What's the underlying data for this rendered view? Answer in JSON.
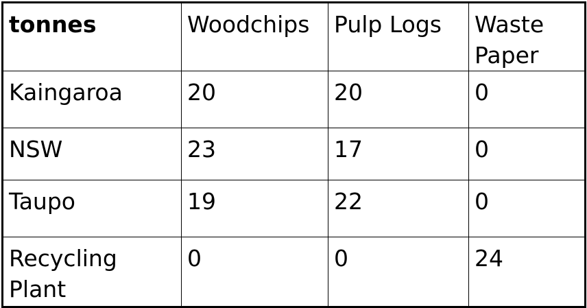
{
  "table": {
    "corner_label": "tonnes",
    "columns": [
      "Woodchips",
      "Pulp Logs",
      "Waste Paper"
    ],
    "rows": [
      {
        "name": "Kaingaroa",
        "values": [
          "20",
          "20",
          "0"
        ]
      },
      {
        "name": "NSW",
        "values": [
          "23",
          "17",
          "0"
        ]
      },
      {
        "name": "Taupo",
        "values": [
          "19",
          "22",
          "0"
        ]
      },
      {
        "name": "Recycling Plant",
        "values": [
          "0",
          "0",
          "24"
        ]
      }
    ]
  }
}
